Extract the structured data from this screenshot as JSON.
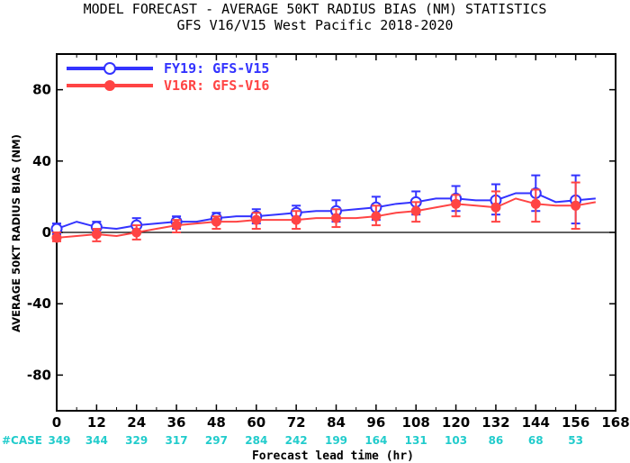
{
  "chart_data": {
    "type": "line",
    "title": "MODEL FORECAST - AVERAGE 50KT RADIUS BIAS (NM) STATISTICS",
    "subtitle": "GFS V16/V15 West Pacific 2018-2020",
    "xlabel": "Forecast lead time (hr)",
    "ylabel": "AVERAGE 50KT RADIUS BIAS (NM)",
    "xlim": [
      0,
      168
    ],
    "ylim": [
      -100,
      100
    ],
    "xticks": [
      0,
      12,
      24,
      36,
      48,
      60,
      72,
      84,
      96,
      108,
      120,
      132,
      144,
      156,
      168
    ],
    "yticks": [
      -80,
      -40,
      0,
      40,
      80
    ],
    "ytick_labels": [
      "-80",
      "-40",
      "0",
      "40",
      "80"
    ],
    "grid": false,
    "legend_position": "top-left",
    "case_label": "#CASE",
    "case_counts": [
      "349",
      "344",
      "329",
      "317",
      "297",
      "284",
      "242",
      "199",
      "164",
      "131",
      "103",
      "86",
      "68",
      "53"
    ],
    "case_x": [
      0,
      12,
      24,
      36,
      48,
      60,
      72,
      84,
      96,
      108,
      120,
      132,
      144,
      156
    ],
    "series": [
      {
        "name": "FY19: GFS-V15",
        "color": "#3333ff",
        "marker": "open-circle",
        "x": [
          0,
          6,
          12,
          18,
          24,
          30,
          36,
          42,
          48,
          54,
          60,
          66,
          72,
          78,
          84,
          90,
          96,
          102,
          108,
          114,
          120,
          126,
          132,
          138,
          144,
          150,
          156,
          162
        ],
        "y": [
          2,
          6,
          3,
          2,
          4,
          5,
          6,
          6,
          8,
          9,
          9,
          10,
          11,
          12,
          12,
          13,
          14,
          16,
          17,
          19,
          19,
          18,
          18,
          22,
          22,
          17,
          18,
          19
        ],
        "error_x": [
          0,
          12,
          24,
          36,
          48,
          60,
          72,
          84,
          96,
          108,
          120,
          132,
          144,
          156
        ],
        "error_low": [
          -1,
          -1,
          0,
          2,
          5,
          5,
          6,
          6,
          7,
          10,
          12,
          10,
          12,
          5
        ],
        "error_high": [
          5,
          6,
          8,
          9,
          11,
          13,
          15,
          18,
          20,
          23,
          26,
          27,
          32,
          32
        ]
      },
      {
        "name": "V16R: GFS-V16",
        "color": "#ff4444",
        "marker": "filled-circle",
        "x": [
          0,
          6,
          12,
          18,
          24,
          30,
          36,
          42,
          48,
          54,
          60,
          66,
          72,
          78,
          84,
          90,
          96,
          102,
          108,
          114,
          120,
          126,
          132,
          138,
          144,
          150,
          156,
          162
        ],
        "y": [
          -3,
          -2,
          -1,
          -2,
          0,
          2,
          4,
          5,
          6,
          6,
          7,
          7,
          7,
          8,
          8,
          8,
          9,
          11,
          12,
          14,
          16,
          15,
          14,
          19,
          16,
          15,
          15,
          17
        ],
        "error_x": [
          0,
          12,
          24,
          36,
          48,
          60,
          72,
          84,
          96,
          108,
          120,
          132,
          144,
          156
        ],
        "error_low": [
          -5,
          -5,
          -4,
          0,
          2,
          2,
          2,
          3,
          4,
          6,
          9,
          6,
          6,
          2
        ],
        "error_high": [
          0,
          2,
          4,
          7,
          9,
          11,
          12,
          13,
          15,
          17,
          21,
          23,
          24,
          28
        ]
      }
    ]
  }
}
